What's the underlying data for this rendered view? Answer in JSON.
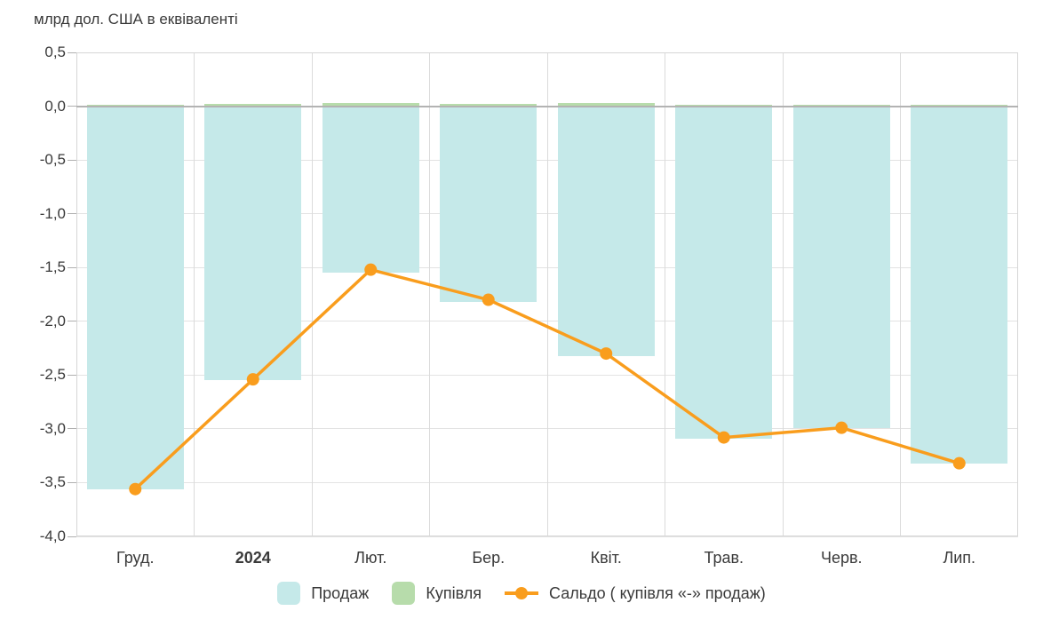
{
  "chart_data": {
    "type": "bar",
    "title": "млрд дол. США в еквіваленті",
    "categories": [
      "Груд.",
      "2024",
      "Лют.",
      "Бер.",
      "Квіт.",
      "Трав.",
      "Черв.",
      "Лип."
    ],
    "emphasized_category": "2024",
    "series": [
      {
        "name": "Продаж",
        "type": "bar",
        "color": "#c5e9e9",
        "values": [
          -3.56,
          -2.55,
          -1.55,
          -1.82,
          -2.32,
          -3.09,
          -2.99,
          -3.32
        ]
      },
      {
        "name": "Купівля",
        "type": "bar",
        "color": "#b7dcab",
        "values": [
          0.01,
          0.02,
          0.03,
          0.02,
          0.03,
          0.01,
          0.01,
          0.01
        ]
      },
      {
        "name": "Сальдо ( купівля «-» продаж)",
        "type": "line",
        "color": "#f99d1d",
        "values": [
          -3.56,
          -2.54,
          -1.52,
          -1.8,
          -2.3,
          -3.08,
          -2.99,
          -3.32
        ]
      }
    ],
    "ylim": [
      -4.0,
      0.5
    ],
    "ytick_step": 0.5,
    "ytick_labels": [
      "0,5",
      "0,0",
      "-0,5",
      "-1,0",
      "-1,5",
      "-2,0",
      "-2,5",
      "-3,0",
      "-3,5",
      "-4,0"
    ],
    "grid": true,
    "legend_position": "bottom",
    "legend": [
      {
        "icon": "square",
        "color": "#c5e9e9",
        "label": "Продаж"
      },
      {
        "icon": "square",
        "color": "#b7dcab",
        "label": "Купівля"
      },
      {
        "icon": "line-marker",
        "color": "#f99d1d",
        "label": "Сальдо ( купівля «-» продаж)"
      }
    ]
  }
}
